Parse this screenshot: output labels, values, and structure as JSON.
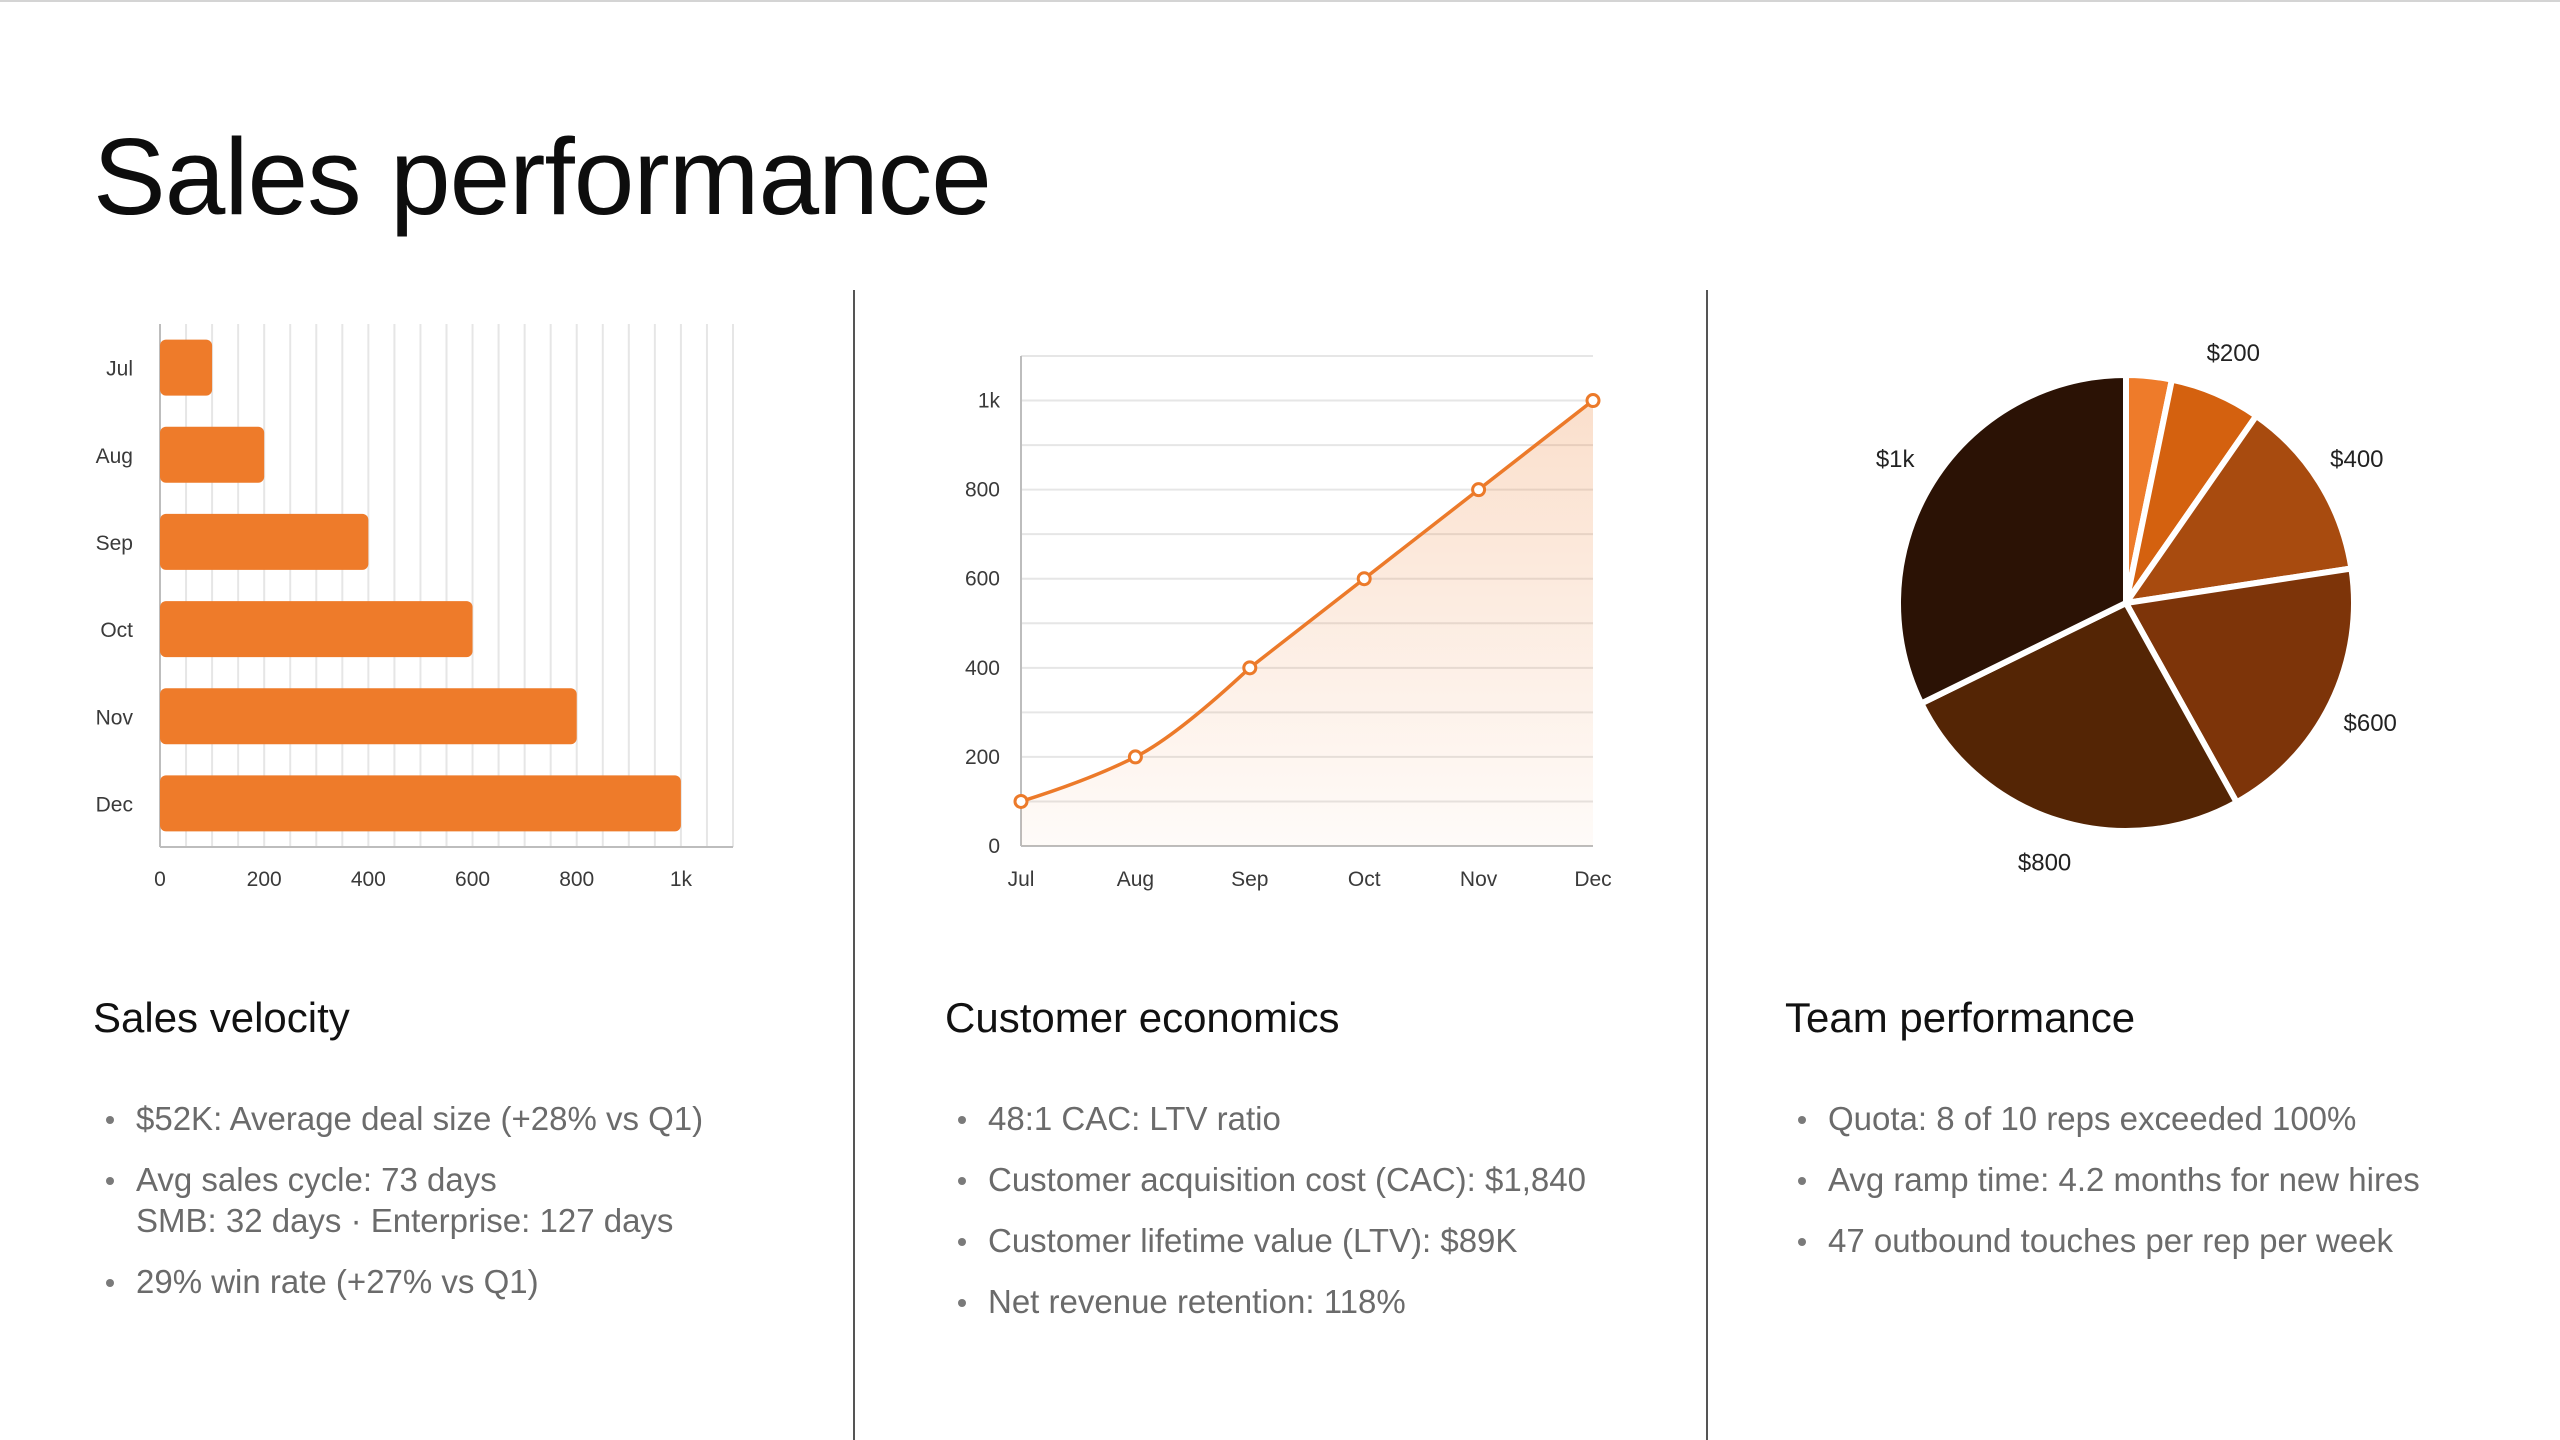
{
  "title": "Sales performance",
  "colors": {
    "accent": "#ee7b2a",
    "line": "#ec7a2a",
    "pie": [
      "#ee7b2a",
      "#d4610f",
      "#a84b0f",
      "#7d3409",
      "#542505",
      "#2b1205"
    ]
  },
  "chart_data": [
    {
      "type": "bar",
      "orientation": "horizontal",
      "categories": [
        "Jul",
        "Aug",
        "Sep",
        "Oct",
        "Nov",
        "Dec"
      ],
      "values": [
        100,
        200,
        400,
        600,
        800,
        1000
      ],
      "xlim": [
        0,
        1100
      ],
      "xticks": [
        "0",
        "200",
        "400",
        "600",
        "800",
        "1k"
      ],
      "grid": true
    },
    {
      "type": "area",
      "categories": [
        "Jul",
        "Aug",
        "Sep",
        "Oct",
        "Nov",
        "Dec"
      ],
      "values": [
        100,
        200,
        400,
        600,
        800,
        1000
      ],
      "ylim": [
        0,
        1100
      ],
      "yticks": [
        "0",
        "200",
        "400",
        "600",
        "800",
        "1k"
      ],
      "grid": true
    },
    {
      "type": "pie",
      "values": [
        100,
        200,
        400,
        600,
        800,
        1000
      ],
      "labels": [
        "",
        "$200",
        "$400",
        "$600",
        "$800",
        "$1k"
      ]
    }
  ],
  "panels": [
    {
      "heading": "Sales velocity",
      "bullets": [
        {
          "lines": [
            "$52K: Average deal size (+28% vs Q1)"
          ]
        },
        {
          "lines": [
            "Avg sales cycle: 73 days",
            "SMB: 32 days · Enterprise: 127 days"
          ]
        },
        {
          "lines": [
            "29% win rate (+27% vs Q1)"
          ]
        }
      ]
    },
    {
      "heading": "Customer economics",
      "bullets": [
        {
          "lines": [
            "48:1 CAC: LTV ratio"
          ]
        },
        {
          "lines": [
            "Customer acquisition cost (CAC): $1,840"
          ]
        },
        {
          "lines": [
            "Customer lifetime value (LTV): $89K"
          ]
        },
        {
          "lines": [
            "Net revenue retention: 118%"
          ]
        }
      ]
    },
    {
      "heading": "Team performance",
      "bullets": [
        {
          "lines": [
            "Quota: 8 of 10 reps exceeded 100%"
          ]
        },
        {
          "lines": [
            "Avg ramp time: 4.2 months for new hires"
          ]
        },
        {
          "lines": [
            "47 outbound touches per rep per week"
          ]
        }
      ]
    }
  ]
}
